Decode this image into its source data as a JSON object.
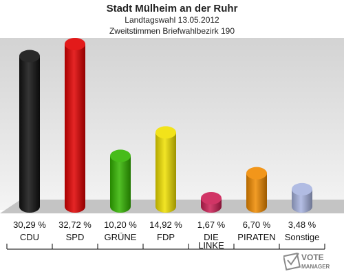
{
  "chart_data": {
    "type": "bar",
    "title": "Stadt Mülheim an der Ruhr",
    "subtitle_1": "Landtagswahl 13.05.2012",
    "subtitle_2": "Zweitstimmen Briefwahlbezirk 190",
    "categories": [
      [
        "CDU"
      ],
      [
        "SPD"
      ],
      [
        "GRÜNE"
      ],
      [
        "FDP"
      ],
      [
        "DIE",
        "LINKE"
      ],
      [
        "PIRATEN"
      ],
      [
        "Sonstige"
      ]
    ],
    "values": [
      30.29,
      32.72,
      10.2,
      14.92,
      1.67,
      6.7,
      3.48
    ],
    "value_labels": [
      "30,29 %",
      "32,72 %",
      "10,20 %",
      "14,92 %",
      "1,67 %",
      "6,70 %",
      "3,48 %"
    ],
    "colors": [
      "#111111",
      "#e00000",
      "#33b500",
      "#f0e000",
      "#cc1f55",
      "#f08a00",
      "#a8b4e0"
    ],
    "xlabel": "",
    "ylabel": "",
    "ylim": [
      0,
      33
    ],
    "grid": false,
    "legend": "none"
  },
  "logo": {
    "line1": "VOTE",
    "line2": "MANAGER",
    "colors": {
      "text": "#7a7a7a",
      "mark": "#8a8a8a"
    }
  },
  "theme": {
    "wall_top": "#d3d3d3",
    "wall_bottom": "#f4f4f4",
    "floor": "#c4c4c4"
  }
}
